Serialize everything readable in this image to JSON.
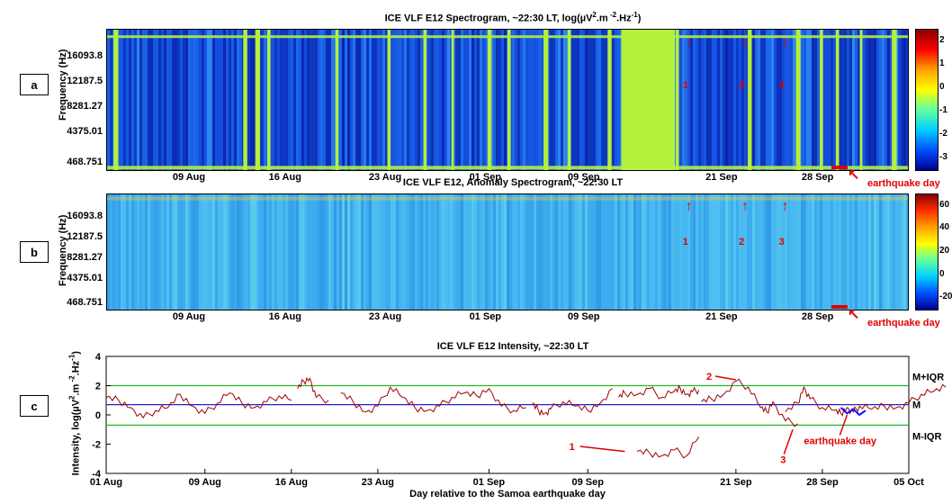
{
  "panels": {
    "a": {
      "label": "a",
      "title_html": "ICE VLF E12 Spectrogram, ~22:30 LT, log(µV².m⁻².Hz⁻¹)",
      "yaxis_title": "Frequency (Hz)",
      "yticks": [
        "16093.8",
        "12187.5",
        "8281.27",
        "4375.01",
        "468.751"
      ],
      "xticks": [
        "09 Aug",
        "16 Aug",
        "23 Aug",
        "01 Sep",
        "09 Sep",
        "21 Sep",
        "28 Sep"
      ],
      "colorbar_ticks": [
        "2",
        "1",
        "0",
        "-1",
        "-2",
        "-3"
      ],
      "colorbar_range": [
        -3.5,
        2.5
      ],
      "markers": [
        "1",
        "2",
        "3"
      ],
      "annotation": "earthquake day"
    },
    "b": {
      "label": "b",
      "title": "ICE VLF E12, Anomaly Spectrogram, ~22:30 LT",
      "yaxis_title": "Frequency (Hz)",
      "yticks": [
        "16093.8",
        "12187.5",
        "8281.27",
        "4375.01",
        "468.751"
      ],
      "xticks": [
        "09 Aug",
        "16 Aug",
        "23 Aug",
        "01 Sep",
        "09 Sep",
        "21 Sep",
        "28 Sep"
      ],
      "colorbar_ticks": [
        "60",
        "40",
        "20",
        "0",
        "-20"
      ],
      "colorbar_range": [
        -30,
        70
      ],
      "markers": [
        "1",
        "2",
        "3"
      ],
      "annotation": "earthquake day"
    },
    "c": {
      "label": "c",
      "title": "ICE VLF E12 Intensity, ~22:30 LT"
    }
  },
  "chart_data": {
    "type": "line",
    "title": "ICE VLF E12 Intensity, ~22:30 LT",
    "xlabel": "Day relative to the Samoa earthquake day",
    "ylabel": "Intensity, log(µV².m⁻².Hz⁻¹)",
    "xlim": [
      0,
      65
    ],
    "ylim": [
      -4,
      4
    ],
    "xtick_labels": [
      "01 Aug",
      "09 Aug",
      "16 Aug",
      "23 Aug",
      "01 Sep",
      "09 Sep",
      "21 Sep",
      "28 Sep",
      "05 Oct"
    ],
    "ytick_labels": [
      "-4",
      "-2",
      "0",
      "2",
      "4"
    ],
    "reference_lines": [
      {
        "name": "M+IQR",
        "y": 2.0,
        "color": "#22bb22"
      },
      {
        "name": "M",
        "y": 0.7,
        "color": "#2222cc"
      },
      {
        "name": "M-IQR",
        "y": -0.7,
        "color": "#22bb22"
      }
    ],
    "series": [
      {
        "color": "#a00000",
        "segments": [
          {
            "x": [
              0,
              1,
              2,
              3,
              4,
              5,
              6,
              7,
              8,
              9,
              10,
              11,
              12,
              13,
              14,
              15
            ],
            "y": [
              1.2,
              1.0,
              0.5,
              -0.2,
              0.3,
              0.5,
              1.4,
              0.6,
              0.1,
              0.8,
              1.5,
              0.8,
              0.5,
              0.9,
              1.3,
              1.0
            ]
          },
          {
            "x": [
              15.5,
              16,
              16.5,
              17,
              18
            ],
            "y": [
              1.8,
              2.3,
              2.5,
              1.2,
              1.0
            ]
          },
          {
            "x": [
              19,
              20,
              21,
              22,
              23,
              24,
              25,
              26,
              27,
              28,
              29,
              30,
              31,
              32,
              33,
              34
            ],
            "y": [
              1.5,
              0.9,
              0.2,
              0.6,
              1.9,
              1.2,
              0.5,
              0.3,
              0.6,
              1.2,
              1.5,
              1.3,
              1.8,
              0.6,
              0.3,
              0.5
            ]
          },
          {
            "x": [
              34.5,
              35,
              35.5,
              36,
              37,
              38,
              39,
              40,
              41
            ],
            "y": [
              0.8,
              0.3,
              0.1,
              0.4,
              0.9,
              0.6,
              0.3,
              0.8,
              1.8
            ]
          },
          {
            "x": [
              41.5,
              42,
              43,
              44,
              45,
              46,
              46.5,
              47,
              47.5,
              48
            ],
            "y": [
              1.2,
              1.5,
              1.4,
              1.8,
              1.2,
              1.6,
              1.8,
              1.4,
              1.6,
              1.7
            ]
          },
          {
            "x": [
              43,
              44,
              45,
              46,
              47,
              48
            ],
            "y": [
              -2.5,
              -2.6,
              -2.8,
              -2.4,
              -2.8,
              -1.5
            ]
          },
          {
            "x": [
              48.2,
              49,
              50,
              51,
              52,
              53,
              53.5,
              54,
              55,
              56
            ],
            "y": [
              0.9,
              1.1,
              1.4,
              2.3,
              1.9,
              0.5,
              0.2,
              0.9,
              -0.4,
              -0.6
            ]
          },
          {
            "x": [
              55,
              56,
              56.5,
              57,
              58,
              59,
              59.5,
              60,
              60.5,
              61,
              62,
              63,
              64,
              65,
              66,
              67,
              68
            ],
            "y": [
              0.2,
              0.8,
              1.9,
              1.1,
              0.5,
              0.3,
              0.1,
              0.5,
              0.2,
              0.6,
              0.4,
              0.6,
              0.5,
              0.8,
              1.4,
              1.6,
              1.9
            ]
          }
        ]
      }
    ],
    "annotations": [
      {
        "text": "1",
        "x": 44,
        "y": -2.6
      },
      {
        "text": "2",
        "x": 51,
        "y": 2.2
      },
      {
        "text": "3",
        "x": 56,
        "y": -0.8
      },
      {
        "text": "earthquake day",
        "x": 60,
        "y": 0.2
      }
    ]
  }
}
